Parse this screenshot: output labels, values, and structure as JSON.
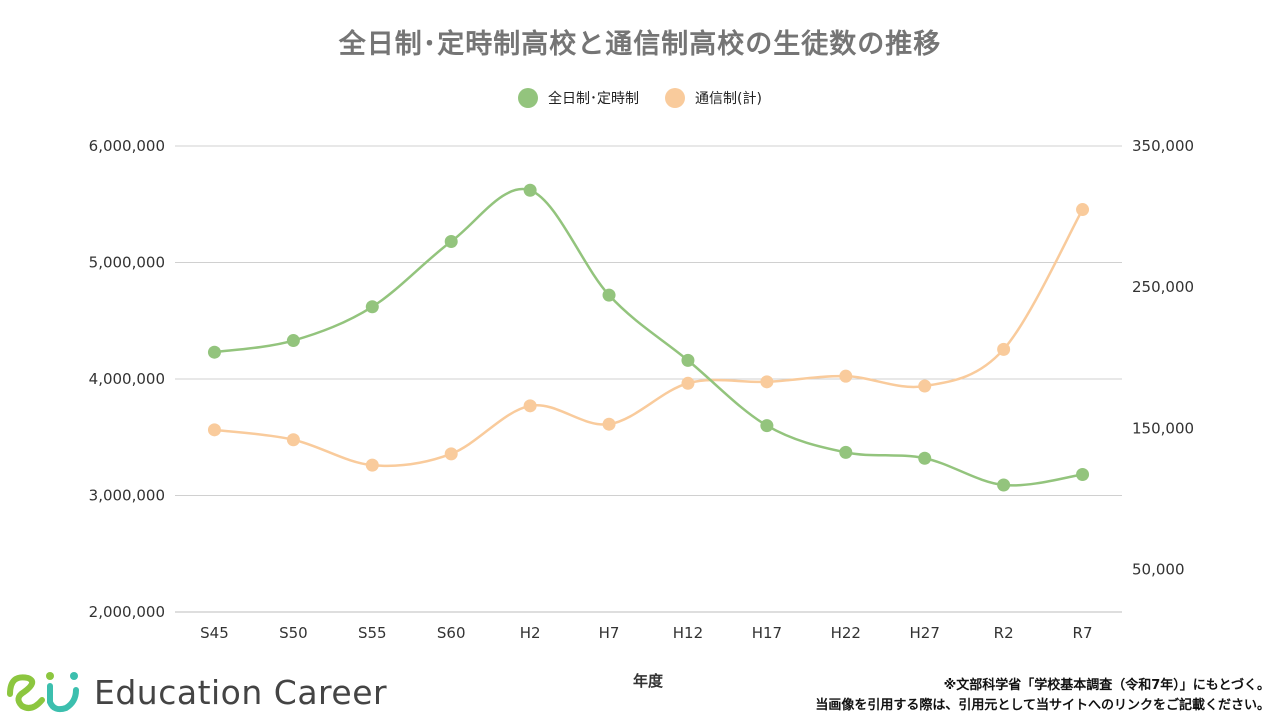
{
  "chart_data": {
    "type": "line",
    "title": "全日制･定時制高校と通信制高校の生徒数の推移",
    "xlabel": "年度",
    "categories": [
      "S45",
      "S50",
      "S55",
      "S60",
      "H2",
      "H7",
      "H12",
      "H17",
      "H22",
      "H27",
      "R2",
      "R7"
    ],
    "left_axis": {
      "ylim": [
        2000000,
        6000000
      ],
      "ticks": [
        "2,000,000",
        "3,000,000",
        "4,000,000",
        "5,000,000",
        "6,000,000"
      ]
    },
    "right_axis": {
      "ylim": [
        20000,
        350000
      ],
      "ticks": [
        "50,000",
        "150,000",
        "250,000",
        "350,000"
      ]
    },
    "series": [
      {
        "name": "全日制･定時制",
        "axis": "left",
        "color": "#93c47d",
        "values": [
          4230000,
          4330000,
          4620000,
          5180000,
          5620000,
          4720000,
          4160000,
          3600000,
          3370000,
          3320000,
          3090000,
          3180000
        ]
      },
      {
        "name": "通信制(計)",
        "axis": "right",
        "color": "#f9cb9c",
        "values": [
          149000,
          142000,
          124000,
          132000,
          166000,
          153000,
          182000,
          183000,
          187000,
          180000,
          206000,
          305000
        ]
      }
    ],
    "grid": true,
    "legend_position": "top"
  },
  "logo": {
    "text": "Education Career"
  },
  "note": {
    "line1": "※文部科学省「学校基本調査（令和7年）」にもとづく。",
    "line2": "当画像を引用する際は、引用元として当サイトへのリンクをご記載ください。"
  },
  "colors": {
    "logo_green": "#8cc63f",
    "logo_teal": "#3cbfae"
  }
}
